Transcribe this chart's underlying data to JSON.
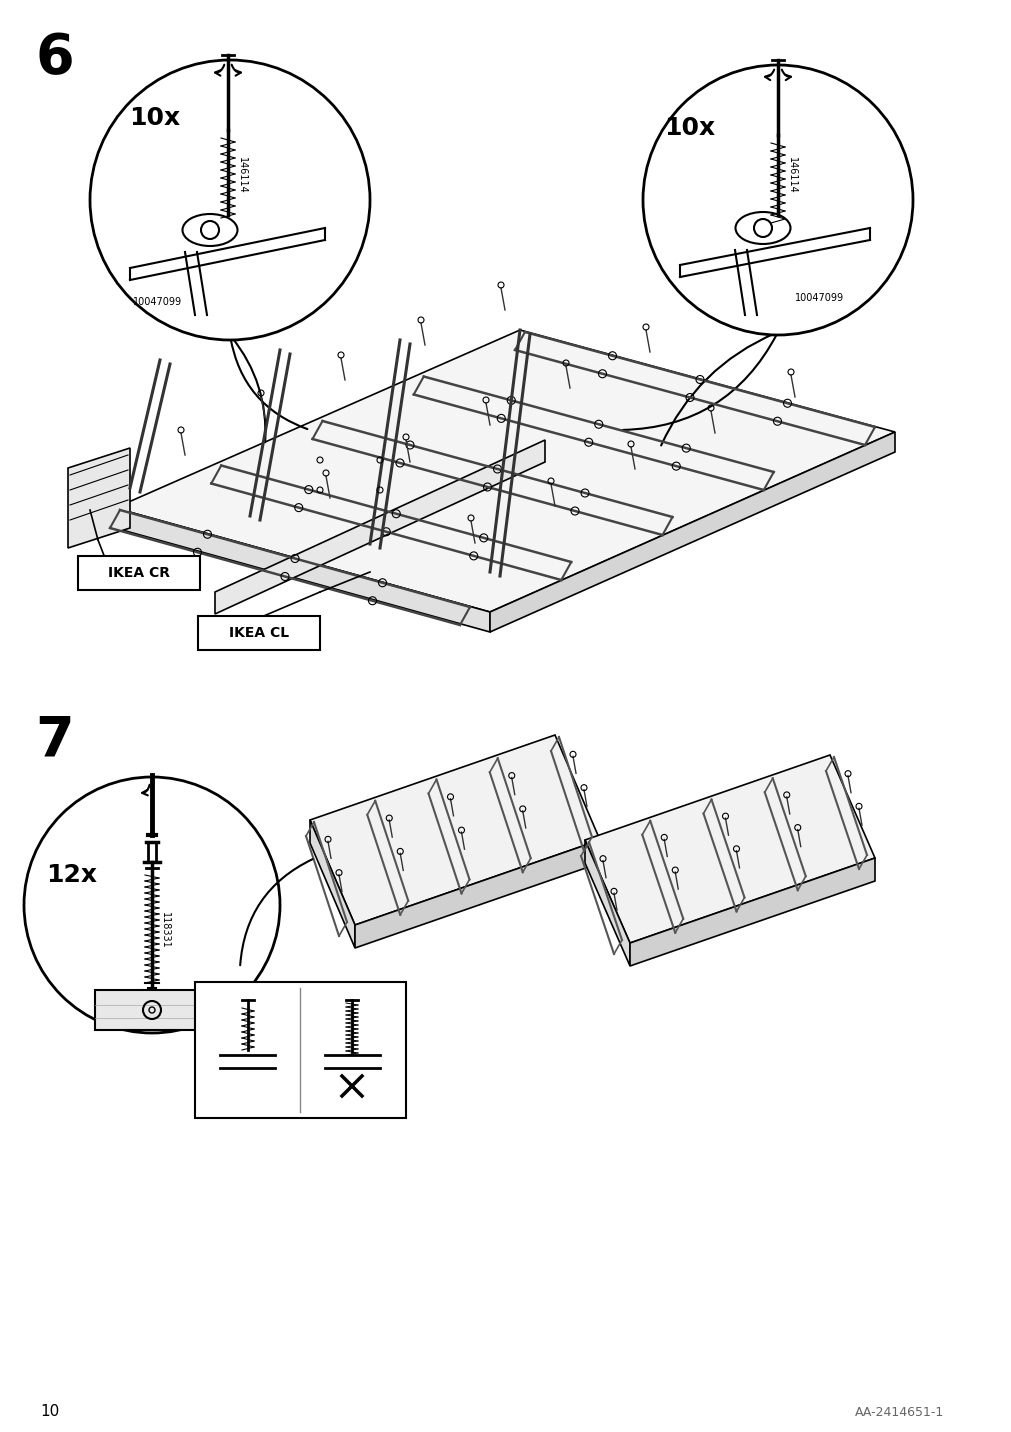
{
  "page_number": "10",
  "doc_id": "AA-2414651-1",
  "background_color": "#ffffff",
  "line_color": "#000000",
  "step6_number": "6",
  "step7_number": "7",
  "step6_qty1": "10x",
  "step6_qty2": "10x",
  "step7_qty": "12x",
  "label_cr": "IKEA CR",
  "label_cl": "IKEA CL",
  "part_146114": "146114",
  "part_10047099": "10047099",
  "part_118331": "118331",
  "figsize": [
    10.12,
    14.32
  ],
  "dpi": 100
}
